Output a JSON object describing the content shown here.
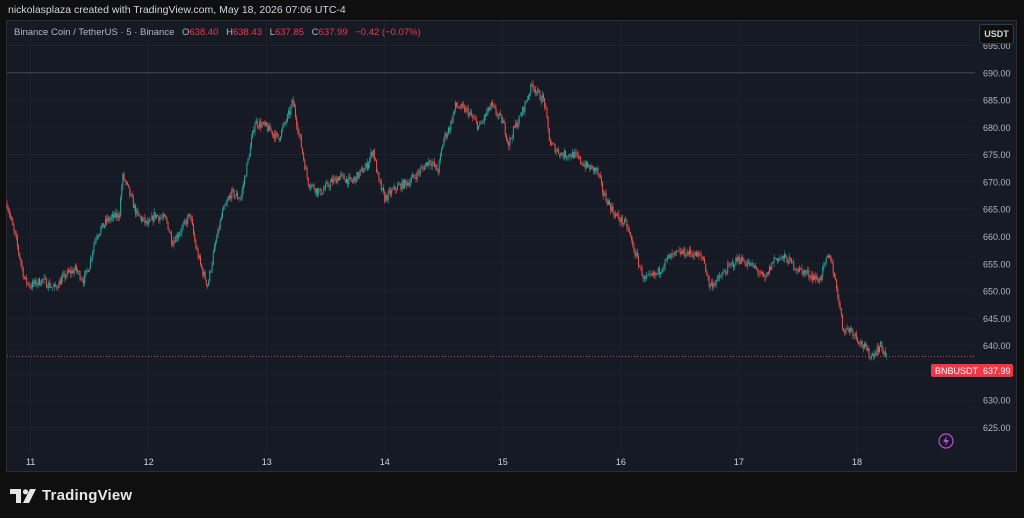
{
  "header": {
    "credit": "nickolasplaza created with TradingView.com, May 18, 2026 07:06 UTC-4"
  },
  "legend": {
    "symbol": "Binance Coin / TetherUS · 5 · Binance",
    "open_label": "O",
    "open": "638.40",
    "high_label": "H",
    "high": "638.43",
    "low_label": "L",
    "low": "637.85",
    "close_label": "C",
    "close": "637.99",
    "change": "−0.42 (−0.07%)"
  },
  "currency_button": "USDT",
  "price_tag": {
    "label": "BNBUSDT",
    "value": "637.99"
  },
  "footer": {
    "brand": "TradingView"
  },
  "colors": {
    "up": "#26a69a",
    "down": "#ef5350",
    "tag": "#f23645",
    "background": "#161a25",
    "grid": "#232734",
    "text": "#b2b5be"
  },
  "chart_data": {
    "type": "candlestick",
    "title": "Binance Coin / TetherUS · 5 · Binance",
    "ylim": [
      620.5,
      699.5
    ],
    "y_ticks": [
      "695.00",
      "690.00",
      "685.00",
      "680.00",
      "675.00",
      "670.00",
      "665.00",
      "660.00",
      "655.00",
      "650.00",
      "645.00",
      "640.00",
      "635.00",
      "630.00",
      "625.00"
    ],
    "x_ticks": [
      {
        "label": "11",
        "day": 11
      },
      {
        "label": "12",
        "day": 12
      },
      {
        "label": "13",
        "day": 13
      },
      {
        "label": "14",
        "day": 14
      },
      {
        "label": "15",
        "day": 15
      },
      {
        "label": "16",
        "day": 16
      },
      {
        "label": "17",
        "day": 17
      },
      {
        "label": "18",
        "day": 18
      }
    ],
    "xlim": [
      10.8,
      19.0
    ],
    "last_price": 637.99,
    "horizontal_line": 690.0,
    "grid": true,
    "series": [
      {
        "path": [
          [
            10.8,
            666
          ],
          [
            10.88,
            659
          ],
          [
            10.95,
            652
          ],
          [
            11.0,
            651
          ],
          [
            11.1,
            652
          ],
          [
            11.2,
            650.5
          ],
          [
            11.3,
            653
          ],
          [
            11.38,
            654
          ],
          [
            11.45,
            652
          ],
          [
            11.5,
            655
          ],
          [
            11.55,
            660
          ],
          [
            11.65,
            663
          ],
          [
            11.75,
            664
          ],
          [
            11.78,
            671
          ],
          [
            11.82,
            669
          ],
          [
            11.9,
            664
          ],
          [
            12.0,
            662
          ],
          [
            12.05,
            664
          ],
          [
            12.15,
            663
          ],
          [
            12.2,
            659
          ],
          [
            12.3,
            662
          ],
          [
            12.35,
            664
          ],
          [
            12.4,
            658
          ],
          [
            12.45,
            654
          ],
          [
            12.5,
            651
          ],
          [
            12.55,
            657
          ],
          [
            12.62,
            664
          ],
          [
            12.7,
            668
          ],
          [
            12.78,
            667
          ],
          [
            12.85,
            675
          ],
          [
            12.9,
            681
          ],
          [
            13.0,
            680
          ],
          [
            13.1,
            678
          ],
          [
            13.2,
            683
          ],
          [
            13.22,
            685
          ],
          [
            13.28,
            678
          ],
          [
            13.35,
            670
          ],
          [
            13.45,
            668
          ],
          [
            13.55,
            670
          ],
          [
            13.62,
            671
          ],
          [
            13.72,
            670
          ],
          [
            13.85,
            673
          ],
          [
            13.9,
            676
          ],
          [
            13.95,
            670
          ],
          [
            14.0,
            667
          ],
          [
            14.1,
            669
          ],
          [
            14.2,
            670
          ],
          [
            14.3,
            672
          ],
          [
            14.38,
            674
          ],
          [
            14.45,
            672
          ],
          [
            14.5,
            678
          ],
          [
            14.55,
            680
          ],
          [
            14.6,
            684
          ],
          [
            14.7,
            683
          ],
          [
            14.8,
            680
          ],
          [
            14.9,
            684
          ],
          [
            15.0,
            681
          ],
          [
            15.05,
            677
          ],
          [
            15.1,
            680
          ],
          [
            15.15,
            682
          ],
          [
            15.2,
            685
          ],
          [
            15.25,
            688
          ],
          [
            15.3,
            686
          ],
          [
            15.35,
            685
          ],
          [
            15.4,
            677
          ],
          [
            15.5,
            675
          ],
          [
            15.6,
            675
          ],
          [
            15.7,
            673
          ],
          [
            15.8,
            672
          ],
          [
            15.85,
            668
          ],
          [
            15.95,
            664
          ],
          [
            16.05,
            662
          ],
          [
            16.12,
            657
          ],
          [
            16.2,
            652
          ],
          [
            16.3,
            653
          ],
          [
            16.4,
            656
          ],
          [
            16.5,
            657
          ],
          [
            16.6,
            657
          ],
          [
            16.7,
            656
          ],
          [
            16.75,
            651
          ],
          [
            16.82,
            652
          ],
          [
            16.9,
            654
          ],
          [
            17.0,
            656
          ],
          [
            17.08,
            655
          ],
          [
            17.15,
            654
          ],
          [
            17.22,
            652
          ],
          [
            17.3,
            656
          ],
          [
            17.4,
            656
          ],
          [
            17.5,
            654
          ],
          [
            17.6,
            653
          ],
          [
            17.68,
            652
          ],
          [
            17.75,
            656
          ],
          [
            17.78,
            656
          ],
          [
            17.85,
            648
          ],
          [
            17.88,
            643
          ],
          [
            17.95,
            643
          ],
          [
            18.05,
            640
          ],
          [
            18.12,
            638
          ],
          [
            18.2,
            640
          ],
          [
            18.25,
            638
          ]
        ]
      }
    ]
  }
}
